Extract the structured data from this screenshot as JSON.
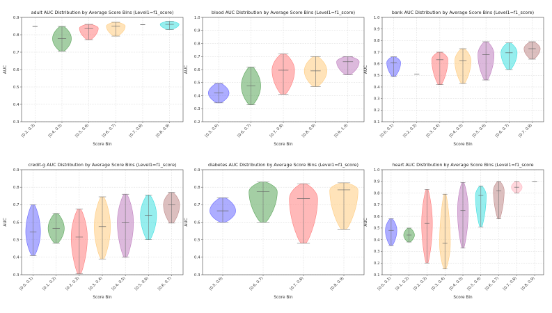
{
  "chart_data": [
    {
      "type": "violin",
      "title": "adult AUC Distribution by Average Score Bins (Level1=f1_score)",
      "xlabel": "Score Bin",
      "ylabel": "AUC",
      "ylim": [
        0.3,
        0.9
      ],
      "yticks": [
        0.3,
        0.4,
        0.5,
        0.6,
        0.7,
        0.8,
        0.9
      ],
      "grid": true,
      "categories": [
        "[0.2, 0.3)",
        "[0.4, 0.5)",
        "[0.5, 0.6)",
        "[0.6, 0.7)",
        "[0.7, 0.8)",
        "[0.8, 0.9)"
      ],
      "colors": [
        "#6a6aff",
        "#5aa55a",
        "#ff7f7f",
        "#ffcc80",
        "#e6b3e6",
        "#40e0e0"
      ],
      "series": [
        {
          "min": 0.848,
          "max": 0.848,
          "median": 0.848,
          "width": 0.0
        },
        {
          "min": 0.705,
          "max": 0.848,
          "median": 0.778,
          "width": 0.35
        },
        {
          "min": 0.772,
          "max": 0.86,
          "median": 0.838,
          "width": 0.35
        },
        {
          "min": 0.792,
          "max": 0.872,
          "median": 0.85,
          "width": 0.35
        },
        {
          "min": 0.858,
          "max": 0.858,
          "median": 0.858,
          "width": 0.0
        },
        {
          "min": 0.83,
          "max": 0.878,
          "median": 0.86,
          "width": 0.35
        }
      ]
    },
    {
      "type": "violin",
      "title": "blood AUC Distribution by Average Score Bins (Level1=f1_score)",
      "xlabel": "Score Bin",
      "ylabel": "AUC",
      "ylim": [
        0.2,
        1.0
      ],
      "yticks": [
        0.2,
        0.3,
        0.4,
        0.5,
        0.6,
        0.7,
        0.8,
        0.9,
        1.0
      ],
      "grid": true,
      "categories": [
        "[0.5, 0.6)",
        "[0.6, 0.7)",
        "[0.7, 0.8)",
        "[0.8, 0.9)",
        "[0.9, 1.0)"
      ],
      "colors": [
        "#6a6aff",
        "#5aa55a",
        "#ff7f7f",
        "#ffcc80",
        "#c080c0"
      ],
      "series": [
        {
          "min": 0.345,
          "max": 0.495,
          "median": 0.42,
          "width": 0.32
        },
        {
          "min": 0.33,
          "max": 0.62,
          "median": 0.475,
          "width": 0.3
        },
        {
          "min": 0.41,
          "max": 0.72,
          "median": 0.595,
          "width": 0.35
        },
        {
          "min": 0.47,
          "max": 0.7,
          "median": 0.59,
          "width": 0.35
        },
        {
          "min": 0.56,
          "max": 0.7,
          "median": 0.66,
          "width": 0.35
        }
      ]
    },
    {
      "type": "violin",
      "title": "bank AUC Distribution by Average Score Bins (Level1=f1_score)",
      "xlabel": "Score Bin",
      "ylabel": "AUC",
      "ylim": [
        0.1,
        1.0
      ],
      "yticks": [
        0.1,
        0.2,
        0.3,
        0.4,
        0.5,
        0.6,
        0.7,
        0.8,
        0.9,
        1.0
      ],
      "grid": true,
      "categories": [
        "[0.0, 0.1)",
        "[0.2, 0.3)",
        "[0.3, 0.4)",
        "[0.4, 0.5)",
        "[0.5, 0.6)",
        "[0.6, 0.7)",
        "[0.7, 0.8)"
      ],
      "colors": [
        "#6a6aff",
        "#5aa55a",
        "#ff7f7f",
        "#ffcc80",
        "#c080c0",
        "#40e0e0",
        "#c08a8a"
      ],
      "series": [
        {
          "min": 0.49,
          "max": 0.66,
          "median": 0.61,
          "width": 0.3
        },
        {
          "min": 0.51,
          "max": 0.51,
          "median": 0.51,
          "width": 0.0
        },
        {
          "min": 0.42,
          "max": 0.7,
          "median": 0.635,
          "width": 0.35
        },
        {
          "min": 0.43,
          "max": 0.73,
          "median": 0.625,
          "width": 0.35
        },
        {
          "min": 0.46,
          "max": 0.79,
          "median": 0.68,
          "width": 0.35
        },
        {
          "min": 0.55,
          "max": 0.78,
          "median": 0.695,
          "width": 0.35
        },
        {
          "min": 0.64,
          "max": 0.79,
          "median": 0.73,
          "width": 0.35
        }
      ]
    },
    {
      "type": "violin",
      "title": "credit-g AUC Distribution by Average Score Bins (Level1=f1_score)",
      "xlabel": "Score Bin",
      "ylabel": "AUC",
      "ylim": [
        0.3,
        0.9
      ],
      "yticks": [
        0.3,
        0.4,
        0.5,
        0.6,
        0.7,
        0.8,
        0.9
      ],
      "grid": true,
      "categories": [
        "[0.0, 0.1)",
        "[0.1, 0.2)",
        "[0.2, 0.3)",
        "[0.3, 0.4)",
        "[0.4, 0.5)",
        "[0.5, 0.6)",
        "[0.6, 0.7)"
      ],
      "colors": [
        "#6a6aff",
        "#5aa55a",
        "#ff7f7f",
        "#ffcc80",
        "#c080c0",
        "#40e0e0",
        "#c08a8a"
      ],
      "series": [
        {
          "min": 0.41,
          "max": 0.7,
          "median": 0.545,
          "width": 0.32
        },
        {
          "min": 0.48,
          "max": 0.65,
          "median": 0.565,
          "width": 0.35
        },
        {
          "min": 0.305,
          "max": 0.675,
          "median": 0.515,
          "width": 0.35
        },
        {
          "min": 0.39,
          "max": 0.745,
          "median": 0.575,
          "width": 0.35
        },
        {
          "min": 0.4,
          "max": 0.76,
          "median": 0.6,
          "width": 0.35
        },
        {
          "min": 0.5,
          "max": 0.755,
          "median": 0.64,
          "width": 0.35
        },
        {
          "min": 0.595,
          "max": 0.77,
          "median": 0.7,
          "width": 0.35
        }
      ]
    },
    {
      "type": "violin",
      "title": "diabetes AUC Distribution by Average Score Bins (Level1=f1_score)",
      "xlabel": "Score Bin",
      "ylabel": "AUC",
      "ylim": [
        0.3,
        0.9
      ],
      "yticks": [
        0.3,
        0.4,
        0.5,
        0.6,
        0.7,
        0.8,
        0.9
      ],
      "grid": true,
      "categories": [
        "[0.5, 0.6)",
        "[0.6, 0.7)",
        "[0.7, 0.8)",
        "[0.8, 0.9)"
      ],
      "colors": [
        "#6a6aff",
        "#5aa55a",
        "#ff7f7f",
        "#ffcc80"
      ],
      "series": [
        {
          "min": 0.6,
          "max": 0.74,
          "median": 0.665,
          "width": 0.32
        },
        {
          "min": 0.6,
          "max": 0.83,
          "median": 0.775,
          "width": 0.35
        },
        {
          "min": 0.48,
          "max": 0.82,
          "median": 0.735,
          "width": 0.35
        },
        {
          "min": 0.56,
          "max": 0.825,
          "median": 0.785,
          "width": 0.35
        }
      ]
    },
    {
      "type": "violin",
      "title": "heart AUC Distribution by Average Score Bins (Level1=f1_score",
      "xlabel": "Score Bin",
      "ylabel": "AUC",
      "ylim": [
        0.1,
        1.0
      ],
      "yticks": [
        0.1,
        0.2,
        0.3,
        0.4,
        0.5,
        0.6,
        0.7,
        0.8,
        0.9,
        1.0
      ],
      "grid": true,
      "categories": [
        "[0.0, 0.1)",
        "[0.1, 0.2)",
        "[0.2, 0.3)",
        "[0.3, 0.4)",
        "[0.4, 0.5)",
        "[0.5, 0.6)",
        "[0.6, 0.7)",
        "[0.7, 0.8)",
        "[0.8, 0.9)"
      ],
      "colors": [
        "#6a6aff",
        "#5aa55a",
        "#ff7f7f",
        "#ffcc80",
        "#c080c0",
        "#40e0e0",
        "#c08a8a",
        "#ffb6c1",
        "#cccccc"
      ],
      "series": [
        {
          "min": 0.35,
          "max": 0.58,
          "median": 0.48,
          "width": 0.32
        },
        {
          "min": 0.38,
          "max": 0.5,
          "median": 0.44,
          "width": 0.3
        },
        {
          "min": 0.2,
          "max": 0.83,
          "median": 0.54,
          "width": 0.3
        },
        {
          "min": 0.15,
          "max": 0.79,
          "median": 0.37,
          "width": 0.3
        },
        {
          "min": 0.33,
          "max": 0.89,
          "median": 0.65,
          "width": 0.3
        },
        {
          "min": 0.51,
          "max": 0.86,
          "median": 0.78,
          "width": 0.3
        },
        {
          "min": 0.58,
          "max": 0.9,
          "median": 0.82,
          "width": 0.3
        },
        {
          "min": 0.8,
          "max": 0.9,
          "median": 0.85,
          "width": 0.3
        },
        {
          "min": 0.9,
          "max": 0.9,
          "median": 0.9,
          "width": 0.0
        }
      ]
    }
  ]
}
